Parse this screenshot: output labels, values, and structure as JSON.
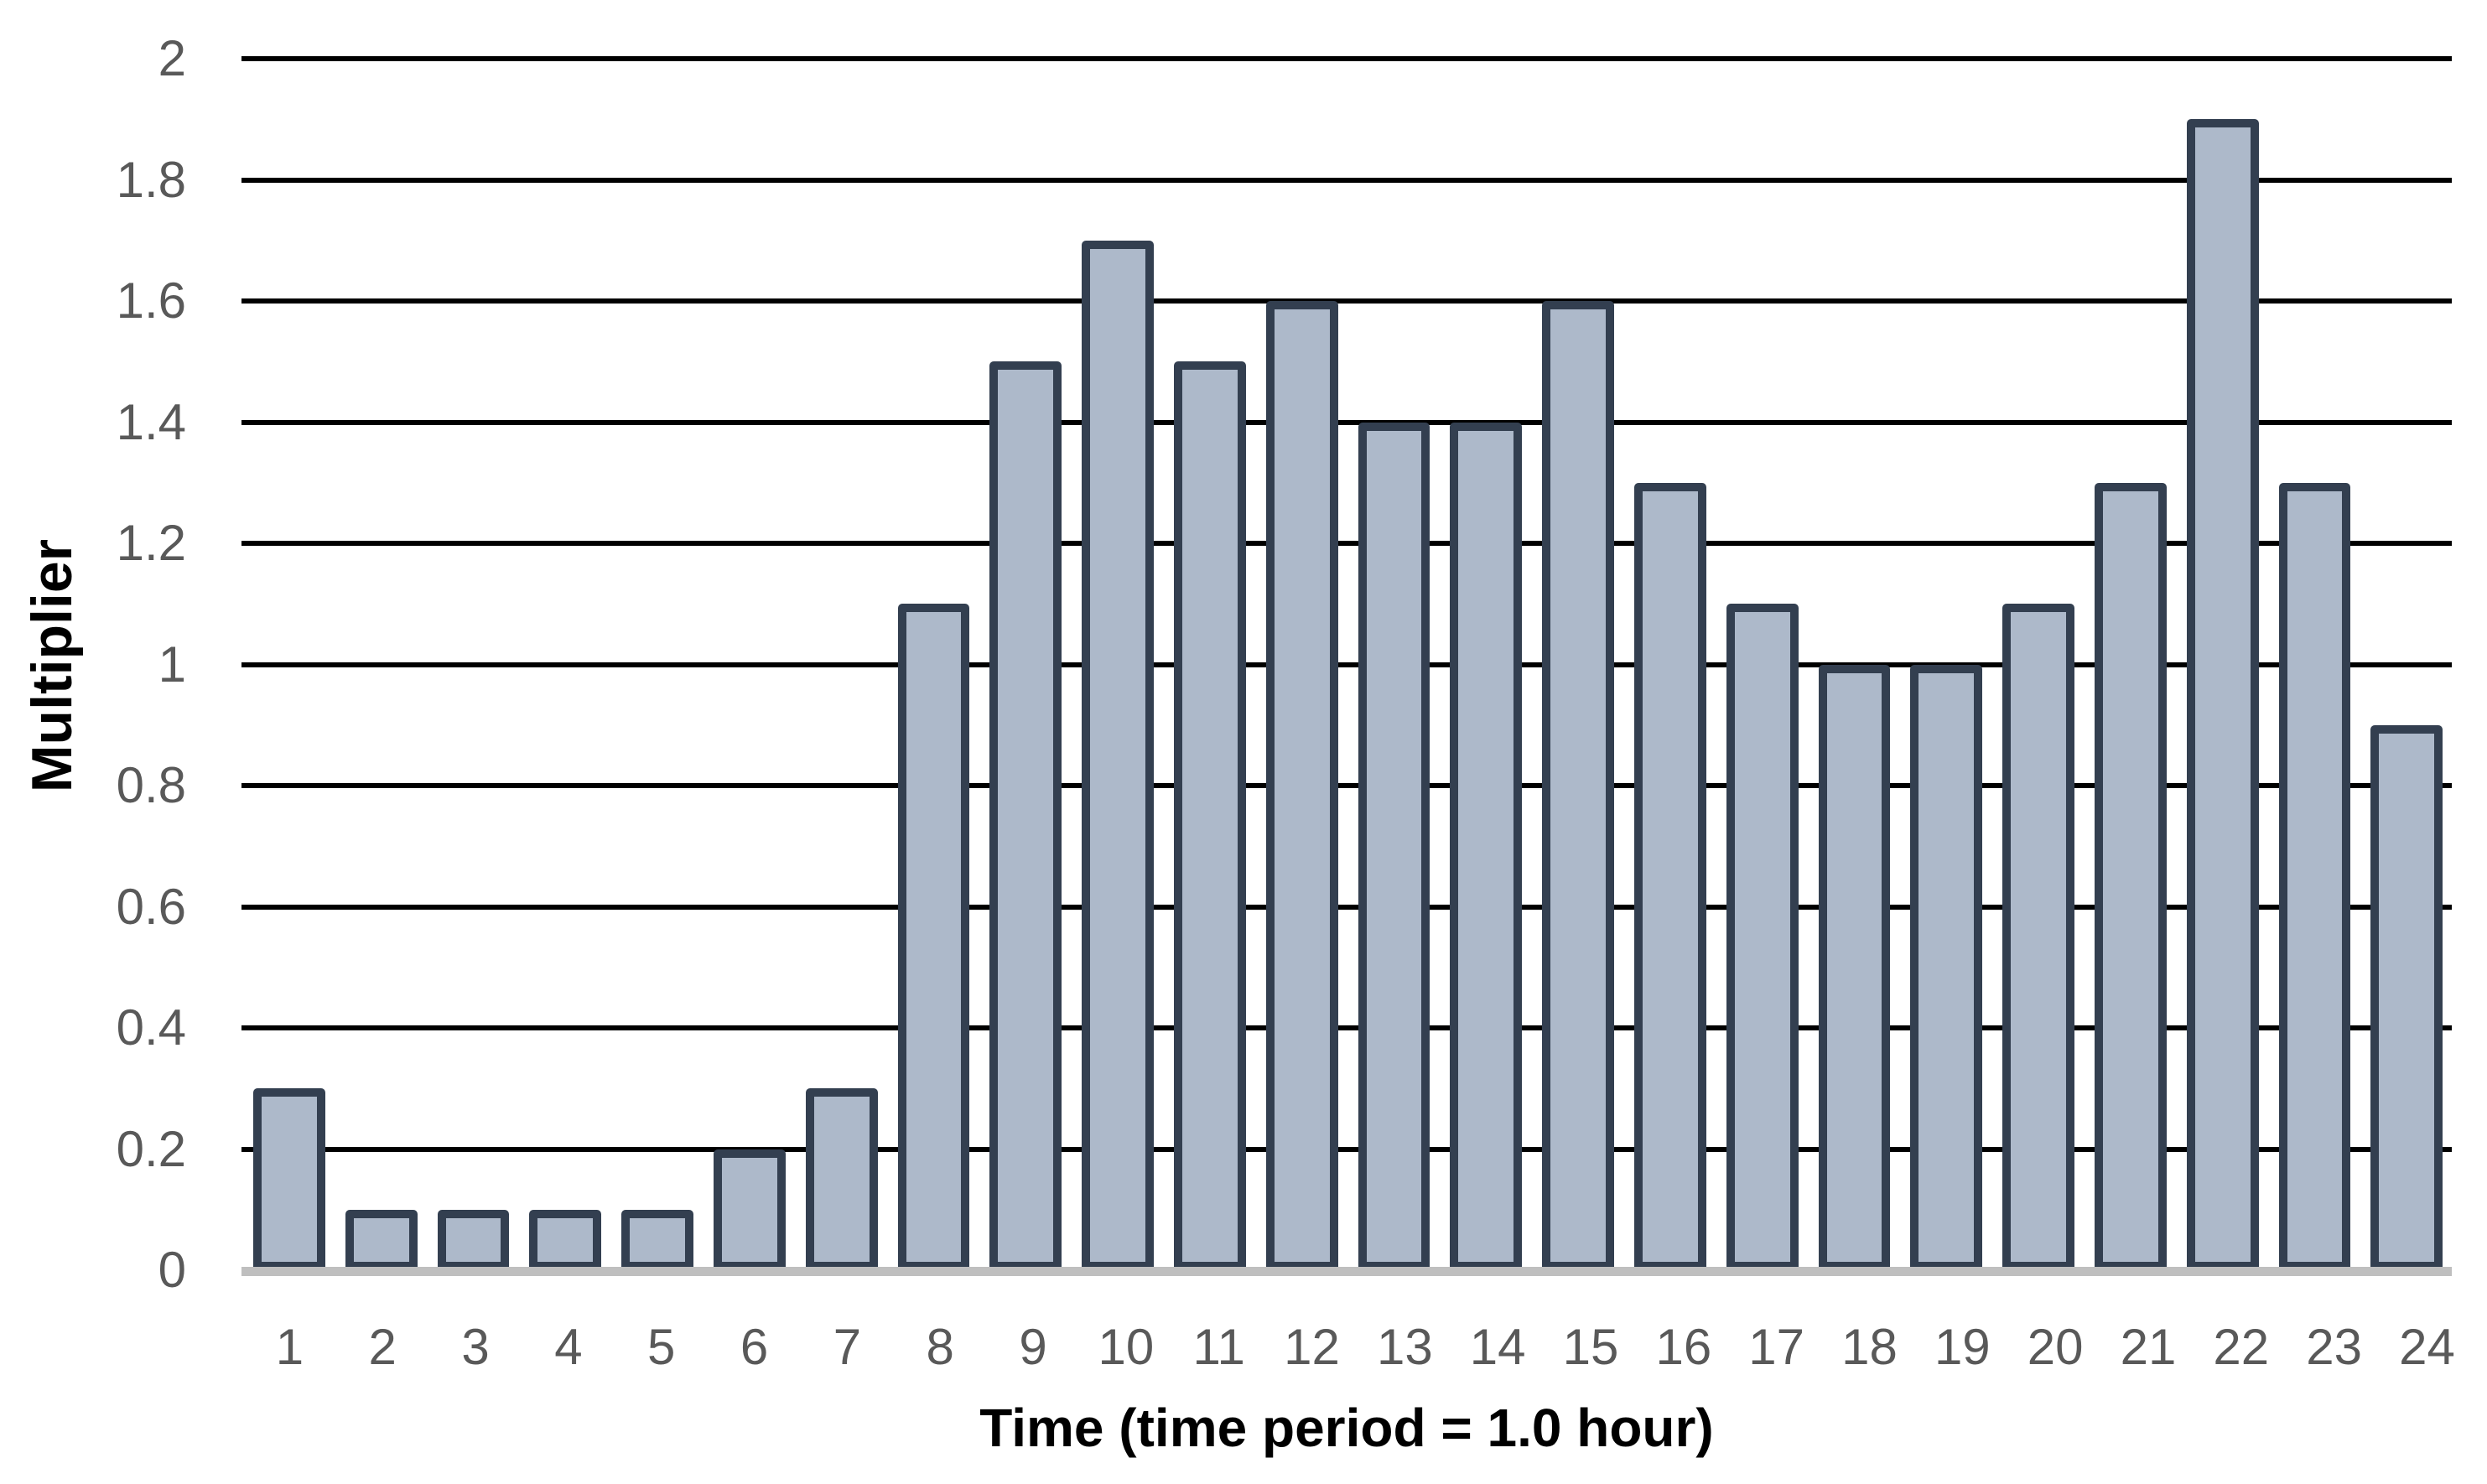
{
  "chart_data": {
    "type": "bar",
    "title": "",
    "xlabel": "Time (time period = 1.0 hour)",
    "ylabel": "Multiplier",
    "categories": [
      "1",
      "2",
      "3",
      "4",
      "5",
      "6",
      "7",
      "8",
      "9",
      "10",
      "11",
      "12",
      "13",
      "14",
      "15",
      "16",
      "17",
      "18",
      "19",
      "20",
      "21",
      "22",
      "23",
      "24"
    ],
    "values": [
      0.3,
      0.1,
      0.1,
      0.1,
      0.1,
      0.2,
      0.3,
      1.1,
      1.5,
      1.7,
      1.5,
      1.6,
      1.4,
      1.4,
      1.6,
      1.3,
      1.1,
      1.0,
      1.0,
      1.1,
      1.3,
      1.9,
      1.3,
      0.9
    ],
    "ylim": [
      0,
      2
    ],
    "ytick_step": 0.2,
    "yticks": [
      "2",
      "1.8",
      "1.6",
      "1.4",
      "1.2",
      "1",
      "0.8",
      "0.6",
      "0.4",
      "0.2",
      "0"
    ],
    "grid": true,
    "legend": "none",
    "colors": {
      "bar_fill": "#ADB9CA",
      "bar_border": "#333F50",
      "gridline": "#000000",
      "axis_line": "#BFBFBF",
      "tick_label": "#595959",
      "axis_title": "#000000"
    }
  }
}
